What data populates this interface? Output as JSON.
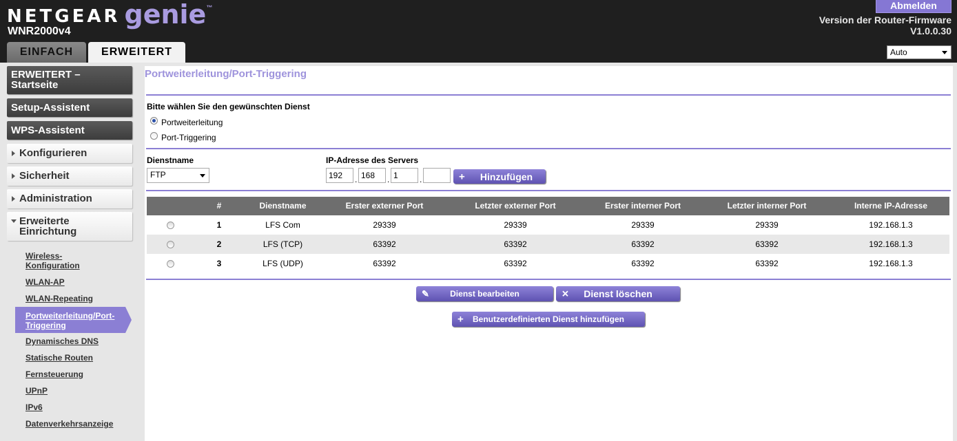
{
  "header": {
    "brand_name": "NETGEAR",
    "brand_product": "genie",
    "brand_tm": "™",
    "model": "WNR2000v4",
    "logout_label": "Abmelden",
    "firmware_label": "Version der Router-Firmware",
    "firmware_version": "V1.0.0.30",
    "tabs": [
      {
        "label": "EINFACH",
        "active": false
      },
      {
        "label": "ERWEITERT",
        "active": true
      }
    ],
    "language_selected": "Auto"
  },
  "sidebar": {
    "main_items": [
      {
        "label_line1": "ERWEITERT –",
        "label_line2": "Startseite"
      },
      {
        "label": "Setup-Assistent"
      },
      {
        "label": "WPS-Assistent"
      }
    ],
    "sections": [
      {
        "label": "Konfigurieren",
        "expanded": false
      },
      {
        "label": "Sicherheit",
        "expanded": false
      },
      {
        "label": "Administration",
        "expanded": false
      },
      {
        "label_line1": "Erweiterte",
        "label_line2": "Einrichtung",
        "expanded": true
      }
    ],
    "sub_items": [
      {
        "line1": "Wireless-",
        "line2": "Konfiguration"
      },
      {
        "line1": "WLAN-AP"
      },
      {
        "line1": "WLAN-Repeating"
      },
      {
        "line1": "Portweiterleitung/Port-",
        "line2": "Triggering",
        "active": true
      },
      {
        "line1": "Dynamisches DNS"
      },
      {
        "line1": "Statische Routen"
      },
      {
        "line1": "Fernsteuerung"
      },
      {
        "line1": "UPnP"
      },
      {
        "line1": "IPv6"
      },
      {
        "line1": "Datenverkehrsanzeige"
      }
    ]
  },
  "main": {
    "title": "Portweiterleitung/Port-Triggering",
    "service_prompt": "Bitte wählen Sie den gewünschten Dienst",
    "radio_options": [
      {
        "label": "Portweiterleitung",
        "checked": true
      },
      {
        "label": "Port-Triggering",
        "checked": false
      }
    ],
    "service_name_label": "Dienstname",
    "service_name_selected": "FTP",
    "server_ip_label": "IP-Adresse des Servers",
    "ip_octets": [
      "192",
      "168",
      "1",
      ""
    ],
    "add_button": "Hinzufügen",
    "table": {
      "columns": [
        "",
        "#",
        "Dienstname",
        "Erster externer Port",
        "Letzter externer Port",
        "Erster interner Port",
        "Letzter interner Port",
        "Interne IP-Adresse"
      ],
      "rows": [
        {
          "num": "1",
          "name": "LFS Com",
          "ext_start": "29339",
          "ext_end": "29339",
          "int_start": "29339",
          "int_end": "29339",
          "ip": "192.168.1.3"
        },
        {
          "num": "2",
          "name": "LFS (TCP)",
          "ext_start": "63392",
          "ext_end": "63392",
          "int_start": "63392",
          "int_end": "63392",
          "ip": "192.168.1.3"
        },
        {
          "num": "3",
          "name": "LFS (UDP)",
          "ext_start": "63392",
          "ext_end": "63392",
          "int_start": "63392",
          "int_end": "63392",
          "ip": "192.168.1.3"
        }
      ]
    },
    "edit_button": "Dienst bearbeiten",
    "delete_button": "Dienst löschen",
    "add_custom_button": "Benutzerdefinierten Dienst hinzufügen"
  },
  "icons": {
    "plus": "+",
    "pencil": "✎",
    "cross": "✕"
  },
  "colors": {
    "accent": "#8b7fd4",
    "title": "#9e93dc",
    "header_bg": "#1f1f1f"
  }
}
